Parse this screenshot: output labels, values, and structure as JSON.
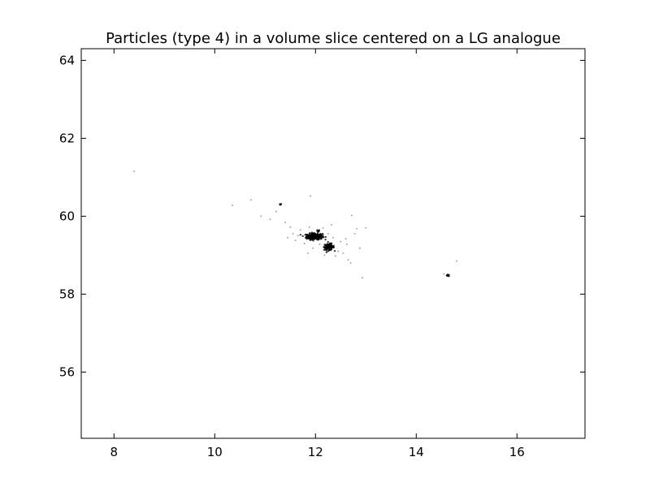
{
  "chart_data": {
    "type": "scatter",
    "title": "Particles (type 4) in a volume slice centered on a LG analogue",
    "xlabel": "",
    "ylabel": "",
    "xlim": [
      7.35,
      17.35
    ],
    "ylim": [
      54.3,
      64.3
    ],
    "xticks": [
      8,
      10,
      12,
      14,
      16
    ],
    "yticks": [
      56,
      58,
      60,
      62,
      64
    ],
    "xtick_labels": [
      "8",
      "10",
      "12",
      "14",
      "16"
    ],
    "ytick_labels": [
      "56",
      "58",
      "60",
      "62",
      "64"
    ],
    "grid": false,
    "legend": "none",
    "marker_color": "#000000",
    "series": [
      {
        "clusters": [
          {
            "x": 11.98,
            "y": 59.48,
            "spread_x": 0.08,
            "spread_y": 0.04,
            "count": 260
          },
          {
            "x": 12.27,
            "y": 59.21,
            "spread_x": 0.05,
            "spread_y": 0.04,
            "count": 110
          },
          {
            "x": 14.63,
            "y": 58.48,
            "spread_x": 0.02,
            "spread_y": 0.01,
            "count": 12
          },
          {
            "x": 12.05,
            "y": 59.62,
            "spread_x": 0.015,
            "spread_y": 0.015,
            "count": 8
          },
          {
            "x": 11.3,
            "y": 60.3,
            "spread_x": 0.015,
            "spread_y": 0.01,
            "count": 4
          }
        ],
        "points": [
          [
            8.4,
            61.15
          ],
          [
            10.35,
            60.28
          ],
          [
            10.72,
            60.42
          ],
          [
            10.92,
            60.0
          ],
          [
            11.1,
            59.92
          ],
          [
            11.22,
            60.12
          ],
          [
            11.4,
            59.84
          ],
          [
            11.5,
            59.72
          ],
          [
            11.55,
            59.55
          ],
          [
            11.6,
            59.38
          ],
          [
            11.7,
            59.65
          ],
          [
            11.78,
            59.3
          ],
          [
            11.85,
            59.05
          ],
          [
            11.9,
            60.52
          ],
          [
            11.95,
            59.18
          ],
          [
            12.15,
            59.7
          ],
          [
            12.18,
            59.0
          ],
          [
            12.25,
            59.55
          ],
          [
            12.32,
            59.78
          ],
          [
            12.4,
            58.98
          ],
          [
            12.45,
            59.1
          ],
          [
            12.5,
            59.35
          ],
          [
            12.55,
            59.05
          ],
          [
            12.62,
            59.28
          ],
          [
            12.65,
            58.88
          ],
          [
            12.7,
            58.8
          ],
          [
            12.72,
            60.02
          ],
          [
            12.78,
            59.55
          ],
          [
            12.82,
            59.68
          ],
          [
            12.88,
            59.18
          ],
          [
            12.93,
            58.42
          ],
          [
            13.0,
            59.7
          ],
          [
            14.55,
            58.52
          ],
          [
            14.8,
            58.85
          ],
          [
            11.45,
            59.45
          ],
          [
            12.35,
            59.45
          ],
          [
            12.08,
            59.28
          ],
          [
            11.88,
            59.72
          ],
          [
            12.6,
            59.42
          ],
          [
            11.65,
            59.5
          ]
        ]
      }
    ]
  }
}
